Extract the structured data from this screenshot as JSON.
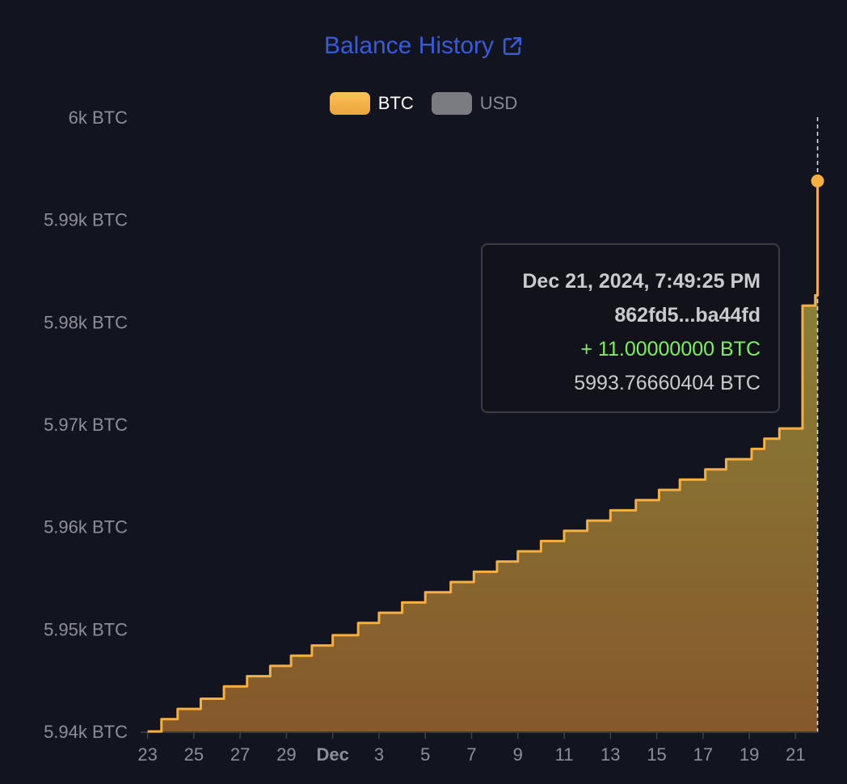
{
  "header": {
    "title": "Balance History",
    "title_icon": "external-link-icon"
  },
  "legend": [
    {
      "label": "BTC",
      "color": "#f5b041",
      "active": true
    },
    {
      "label": "USD",
      "color": "#7b7c82",
      "active": false
    }
  ],
  "tooltip": {
    "date": "Dec 21, 2024, 7:49:25 PM",
    "tx": "862fd5...ba44fd",
    "change": "+ 11.00000000 BTC",
    "balance": "5993.76660404 BTC"
  },
  "chart_data": {
    "type": "area",
    "step": true,
    "series": [
      {
        "name": "BTC",
        "color": "#f5b041",
        "x": [
          23.0,
          23.6,
          24.3,
          25.3,
          26.3,
          27.3,
          28.3,
          29.2,
          30.1,
          31.0,
          32.1,
          33.0,
          34.0,
          35.0,
          36.1,
          37.1,
          38.1,
          39.0,
          40.0,
          41.0,
          42.0,
          43.0,
          44.1,
          45.1,
          46.0,
          47.1,
          48.0,
          49.1,
          49.65,
          50.3,
          51.3,
          51.85
        ],
        "y": [
          5940.0,
          5941.2,
          5942.2,
          5943.2,
          5944.4,
          5945.4,
          5946.4,
          5947.4,
          5948.4,
          5949.4,
          5950.6,
          5951.6,
          5952.6,
          5953.6,
          5954.6,
          5955.6,
          5956.6,
          5957.6,
          5958.6,
          5959.6,
          5960.6,
          5961.6,
          5962.6,
          5963.6,
          5964.6,
          5965.6,
          5966.6,
          5967.6,
          5968.6,
          5969.6,
          5981.6,
          5982.6
        ]
      }
    ],
    "final_point": {
      "x": 51.95,
      "y": 5993.77
    },
    "xlabel": "",
    "ylabel": "",
    "xlim": [
      22.7,
      52.0
    ],
    "ylim": [
      5940,
      6000
    ],
    "y_ticks": [
      5940,
      5950,
      5960,
      5970,
      5980,
      5990,
      6000
    ],
    "y_tick_labels": [
      "5.94k BTC",
      "5.95k BTC",
      "5.96k BTC",
      "5.97k BTC",
      "5.98k BTC",
      "5.99k BTC",
      "6k BTC"
    ],
    "x_ticks": [
      23,
      25,
      27,
      29,
      31,
      33,
      35,
      37,
      39,
      41,
      43,
      45,
      47,
      49,
      51
    ],
    "x_tick_labels": [
      "23",
      "25",
      "27",
      "29",
      "Dec",
      "3",
      "5",
      "7",
      "9",
      "11",
      "13",
      "15",
      "17",
      "19",
      "21"
    ],
    "x_tick_bold": [
      false,
      false,
      false,
      false,
      true,
      false,
      false,
      false,
      false,
      false,
      false,
      false,
      false,
      false,
      false
    ],
    "grid": false,
    "legend_position": "top-center"
  }
}
